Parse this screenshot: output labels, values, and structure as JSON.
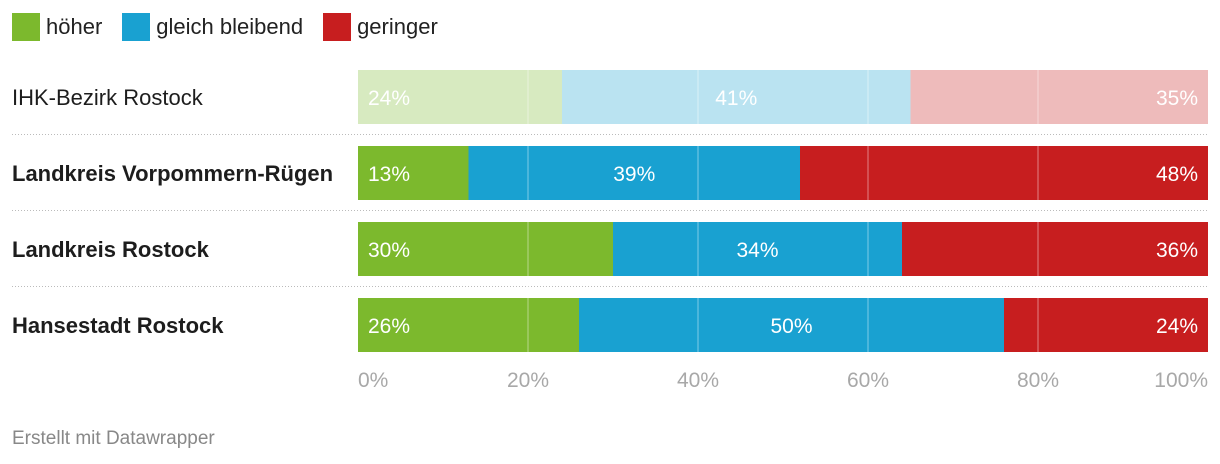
{
  "chart_data": {
    "type": "bar",
    "orientation": "horizontal",
    "stacked": true,
    "categories": [
      "IHK-Bezirk Rostock",
      "Landkreis Vorpommern-Rügen",
      "Landkreis Rostock",
      "Hansestadt Rostock"
    ],
    "highlighted": [
      false,
      true,
      true,
      true
    ],
    "series": [
      {
        "name": "höher",
        "color": "#7cb92d",
        "values": [
          24,
          13,
          30,
          26
        ]
      },
      {
        "name": "gleich bleibend",
        "color": "#19a1d1",
        "values": [
          41,
          39,
          34,
          50
        ]
      },
      {
        "name": "geringer",
        "color": "#c71e1f",
        "values": [
          35,
          48,
          36,
          24
        ]
      }
    ],
    "xlim": [
      0,
      100
    ],
    "ticks": [
      0,
      20,
      40,
      60,
      80,
      100
    ],
    "tick_labels": [
      "0%",
      "20%",
      "40%",
      "60%",
      "80%",
      "100%"
    ],
    "value_suffix": "%",
    "legend_position": "top-left",
    "grid": true
  },
  "footer": "Erstellt mit Datawrapper"
}
